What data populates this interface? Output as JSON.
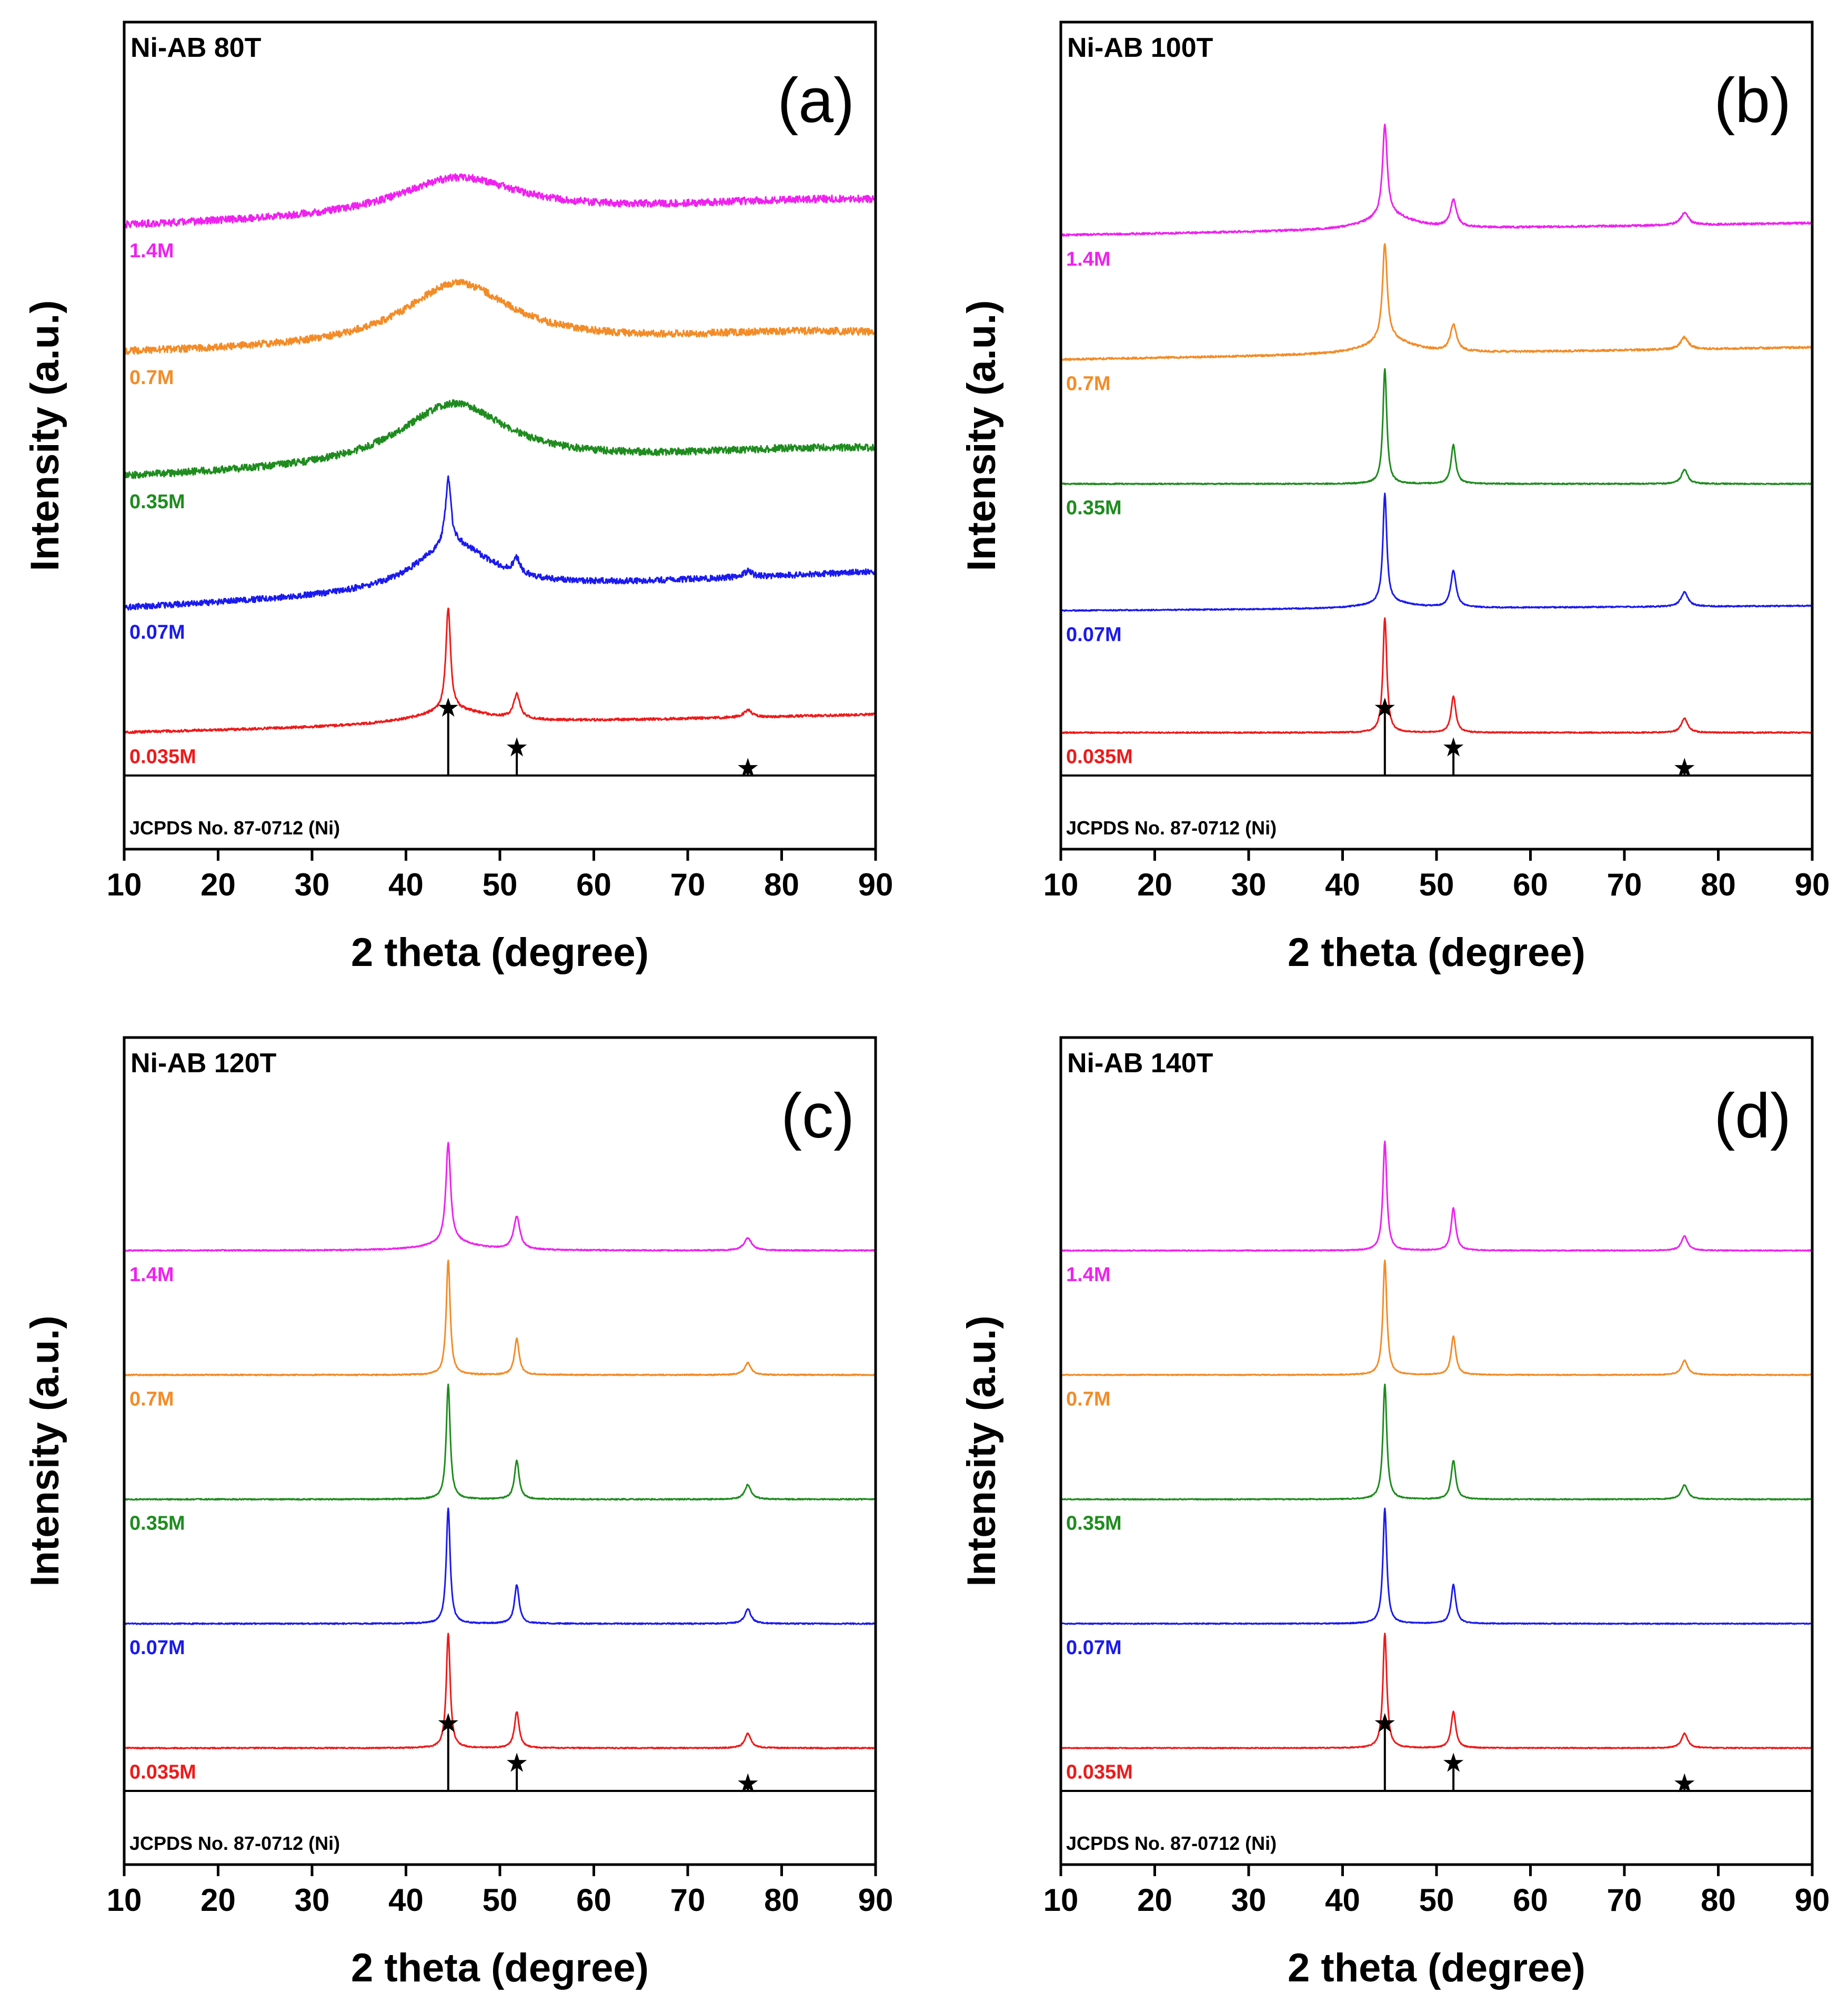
{
  "chart_data": [
    {
      "type": "line",
      "panel": "(a)",
      "title": "Ni-AB 80T",
      "xlabel": "2 theta (degree)",
      "ylabel": "Intensity (a.u.)",
      "xlim": [
        10,
        90
      ],
      "xticks": [
        "10",
        "20",
        "30",
        "40",
        "50",
        "60",
        "70",
        "80",
        "90"
      ],
      "reference": {
        "label": "JCPDS No. 87-0712 (Ni)",
        "peaks": [
          44.5,
          51.8,
          76.4
        ],
        "heights": [
          1.0,
          0.42,
          0.12
        ]
      },
      "peak_positions": [
        44.5,
        51.8,
        76.4
      ],
      "series": [
        {
          "name": "1.4M",
          "color": "#ee22ee",
          "baseline_start": 0.12,
          "baseline_end": 0.3,
          "peaks": [
            {
              "x": 45.5,
              "width": 8.0,
              "height": 0.32
            },
            {
              "x": 82,
              "width": 15,
              "height": 0.05
            }
          ],
          "noise": 0.03
        },
        {
          "name": "0.7M",
          "color": "#f28c28",
          "baseline_start": 0.1,
          "baseline_end": 0.22,
          "peaks": [
            {
              "x": 45.5,
              "width": 7.0,
              "height": 0.52
            },
            {
              "x": 82,
              "width": 15,
              "height": 0.06
            }
          ],
          "noise": 0.03
        },
        {
          "name": "0.35M",
          "color": "#1e8c1e",
          "baseline_start": 0.1,
          "baseline_end": 0.3,
          "peaks": [
            {
              "x": 45.0,
              "width": 7.0,
              "height": 0.52
            },
            {
              "x": 82,
              "width": 15,
              "height": 0.05
            }
          ],
          "noise": 0.03
        },
        {
          "name": "0.07M",
          "color": "#1a1aee",
          "baseline_start": 0.05,
          "baseline_end": 0.35,
          "peaks": [
            {
              "x": 45.0,
              "width": 5.0,
              "height": 0.4
            },
            {
              "x": 44.5,
              "width": 0.35,
              "height": 0.55
            },
            {
              "x": 51.8,
              "width": 0.45,
              "height": 0.12
            },
            {
              "x": 76.4,
              "width": 0.5,
              "height": 0.05
            }
          ],
          "noise": 0.025
        },
        {
          "name": "0.035M",
          "color": "#ee1a1a",
          "baseline_start": 0.05,
          "baseline_end": 0.2,
          "peaks": [
            {
              "x": 45.0,
              "width": 5.0,
              "height": 0.12
            },
            {
              "x": 44.5,
              "width": 0.3,
              "height": 0.85
            },
            {
              "x": 51.8,
              "width": 0.4,
              "height": 0.2
            },
            {
              "x": 76.4,
              "width": 0.5,
              "height": 0.06
            }
          ],
          "noise": 0.01
        }
      ]
    },
    {
      "type": "line",
      "panel": "(b)",
      "title": "Ni-AB 100T",
      "xlabel": "2 theta (degree)",
      "ylabel": "Intensity (a.u.)",
      "xlim": [
        10,
        90
      ],
      "xticks": [
        "10",
        "20",
        "30",
        "40",
        "50",
        "60",
        "70",
        "80",
        "90"
      ],
      "reference": {
        "label": "JCPDS No. 87-0712 (Ni)",
        "peaks": [
          44.5,
          51.8,
          76.4
        ],
        "heights": [
          1.0,
          0.42,
          0.12
        ]
      },
      "peak_positions": [
        44.5,
        51.8,
        76.4
      ],
      "series": [
        {
          "name": "1.4M",
          "color": "#ee22ee",
          "baseline_start": 0.05,
          "baseline_end": 0.15,
          "peaks": [
            {
              "x": 45.0,
              "width": 3.0,
              "height": 0.12
            },
            {
              "x": 44.5,
              "width": 0.3,
              "height": 0.75
            },
            {
              "x": 51.8,
              "width": 0.4,
              "height": 0.22
            },
            {
              "x": 76.4,
              "width": 0.5,
              "height": 0.1
            }
          ],
          "noise": 0.008
        },
        {
          "name": "0.7M",
          "color": "#f28c28",
          "baseline_start": 0.05,
          "baseline_end": 0.15,
          "peaks": [
            {
              "x": 45.0,
              "width": 3.0,
              "height": 0.12
            },
            {
              "x": 44.5,
              "width": 0.3,
              "height": 0.8
            },
            {
              "x": 51.8,
              "width": 0.4,
              "height": 0.22
            },
            {
              "x": 76.4,
              "width": 0.5,
              "height": 0.1
            }
          ],
          "noise": 0.008
        },
        {
          "name": "0.35M",
          "color": "#1e8c1e",
          "baseline_start": 0.05,
          "baseline_end": 0.05,
          "peaks": [
            {
              "x": 44.5,
              "width": 0.25,
              "height": 0.95
            },
            {
              "x": 51.8,
              "width": 0.3,
              "height": 0.32
            },
            {
              "x": 76.4,
              "width": 0.4,
              "height": 0.12
            }
          ],
          "noise": 0.005
        },
        {
          "name": "0.07M",
          "color": "#1a1aee",
          "baseline_start": 0.03,
          "baseline_end": 0.07,
          "peaks": [
            {
              "x": 45.0,
              "width": 3.0,
              "height": 0.05
            },
            {
              "x": 44.5,
              "width": 0.25,
              "height": 0.9
            },
            {
              "x": 51.8,
              "width": 0.35,
              "height": 0.3
            },
            {
              "x": 76.4,
              "width": 0.45,
              "height": 0.12
            }
          ],
          "noise": 0.005
        },
        {
          "name": "0.035M",
          "color": "#ee1a1a",
          "baseline_start": 0.05,
          "baseline_end": 0.05,
          "peaks": [
            {
              "x": 44.5,
              "width": 0.25,
              "height": 0.95
            },
            {
              "x": 51.8,
              "width": 0.3,
              "height": 0.3
            },
            {
              "x": 76.4,
              "width": 0.4,
              "height": 0.12
            }
          ],
          "noise": 0.005
        }
      ]
    },
    {
      "type": "line",
      "panel": "(c)",
      "title": "Ni-AB 120T",
      "xlabel": "2 theta (degree)",
      "ylabel": "Intensity (a.u.)",
      "xlim": [
        10,
        90
      ],
      "xticks": [
        "10",
        "20",
        "30",
        "40",
        "50",
        "60",
        "70",
        "80",
        "90"
      ],
      "reference": {
        "label": "JCPDS No. 87-0712 (Ni)",
        "peaks": [
          44.5,
          51.8,
          76.4
        ],
        "heights": [
          1.0,
          0.42,
          0.12
        ]
      },
      "peak_positions": [
        44.5,
        51.8,
        76.4
      ],
      "series": [
        {
          "name": "1.4M",
          "color": "#ee22ee",
          "baseline_start": 0.05,
          "baseline_end": 0.05,
          "peaks": [
            {
              "x": 45.0,
              "width": 3.0,
              "height": 0.07
            },
            {
              "x": 44.5,
              "width": 0.3,
              "height": 0.82
            },
            {
              "x": 51.8,
              "width": 0.4,
              "height": 0.27
            },
            {
              "x": 76.4,
              "width": 0.5,
              "height": 0.1
            }
          ],
          "noise": 0.005
        },
        {
          "name": "0.7M",
          "color": "#f28c28",
          "baseline_start": 0.05,
          "baseline_end": 0.05,
          "peaks": [
            {
              "x": 44.5,
              "width": 0.25,
              "height": 0.95
            },
            {
              "x": 51.8,
              "width": 0.3,
              "height": 0.3
            },
            {
              "x": 76.4,
              "width": 0.4,
              "height": 0.1
            }
          ],
          "noise": 0.005
        },
        {
          "name": "0.35M",
          "color": "#1e8c1e",
          "baseline_start": 0.05,
          "baseline_end": 0.05,
          "peaks": [
            {
              "x": 44.5,
              "width": 0.25,
              "height": 0.95
            },
            {
              "x": 51.8,
              "width": 0.3,
              "height": 0.32
            },
            {
              "x": 76.4,
              "width": 0.4,
              "height": 0.12
            }
          ],
          "noise": 0.005
        },
        {
          "name": "0.07M",
          "color": "#1a1aee",
          "baseline_start": 0.05,
          "baseline_end": 0.05,
          "peaks": [
            {
              "x": 44.5,
              "width": 0.25,
              "height": 0.95
            },
            {
              "x": 51.8,
              "width": 0.3,
              "height": 0.32
            },
            {
              "x": 76.4,
              "width": 0.4,
              "height": 0.12
            }
          ],
          "noise": 0.005
        },
        {
          "name": "0.035M",
          "color": "#ee1a1a",
          "baseline_start": 0.05,
          "baseline_end": 0.05,
          "peaks": [
            {
              "x": 44.5,
              "width": 0.25,
              "height": 0.95
            },
            {
              "x": 51.8,
              "width": 0.3,
              "height": 0.3
            },
            {
              "x": 76.4,
              "width": 0.4,
              "height": 0.12
            }
          ],
          "noise": 0.005
        }
      ]
    },
    {
      "type": "line",
      "panel": "(d)",
      "title": "Ni-AB 140T",
      "xlabel": "2 theta (degree)",
      "ylabel": "Intensity (a.u.)",
      "xlim": [
        10,
        90
      ],
      "xticks": [
        "10",
        "20",
        "30",
        "40",
        "50",
        "60",
        "70",
        "80",
        "90"
      ],
      "reference": {
        "label": "JCPDS No. 87-0712 (Ni)",
        "peaks": [
          44.5,
          51.8,
          76.4
        ],
        "heights": [
          1.0,
          0.42,
          0.12
        ]
      },
      "peak_positions": [
        44.5,
        51.8,
        76.4
      ],
      "series": [
        {
          "name": "1.4M",
          "color": "#ee22ee",
          "baseline_start": 0.05,
          "baseline_end": 0.05,
          "peaks": [
            {
              "x": 44.5,
              "width": 0.25,
              "height": 0.9
            },
            {
              "x": 51.8,
              "width": 0.3,
              "height": 0.35
            },
            {
              "x": 76.4,
              "width": 0.4,
              "height": 0.12
            }
          ],
          "noise": 0.004
        },
        {
          "name": "0.7M",
          "color": "#f28c28",
          "baseline_start": 0.05,
          "baseline_end": 0.05,
          "peaks": [
            {
              "x": 44.5,
              "width": 0.25,
              "height": 0.95
            },
            {
              "x": 51.8,
              "width": 0.3,
              "height": 0.32
            },
            {
              "x": 76.4,
              "width": 0.4,
              "height": 0.12
            }
          ],
          "noise": 0.004
        },
        {
          "name": "0.35M",
          "color": "#1e8c1e",
          "baseline_start": 0.05,
          "baseline_end": 0.05,
          "peaks": [
            {
              "x": 44.5,
              "width": 0.25,
              "height": 0.95
            },
            {
              "x": 51.8,
              "width": 0.3,
              "height": 0.32
            },
            {
              "x": 76.4,
              "width": 0.4,
              "height": 0.12
            }
          ],
          "noise": 0.004
        },
        {
          "name": "0.07M",
          "color": "#1a1aee",
          "baseline_start": 0.05,
          "baseline_end": 0.05,
          "peaks": [
            {
              "x": 44.5,
              "width": 0.25,
              "height": 0.95
            },
            {
              "x": 51.8,
              "width": 0.3,
              "height": 0.32
            }
          ],
          "noise": 0.004
        },
        {
          "name": "0.035M",
          "color": "#ee1a1a",
          "baseline_start": 0.05,
          "baseline_end": 0.05,
          "peaks": [
            {
              "x": 44.5,
              "width": 0.25,
              "height": 0.95
            },
            {
              "x": 51.8,
              "width": 0.3,
              "height": 0.3
            },
            {
              "x": 76.4,
              "width": 0.4,
              "height": 0.12
            }
          ],
          "noise": 0.004
        }
      ]
    }
  ]
}
